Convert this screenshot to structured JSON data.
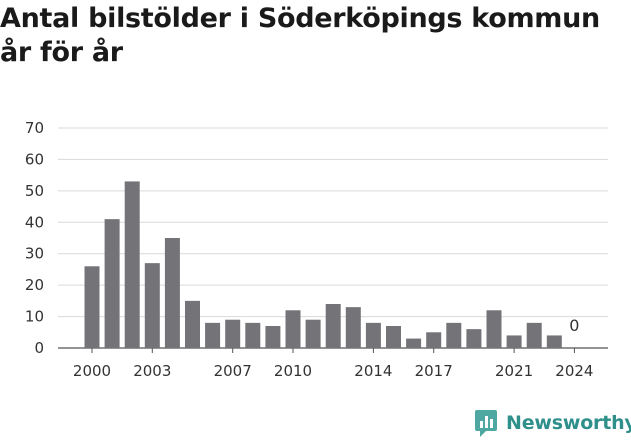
{
  "chart_data": {
    "type": "bar",
    "title_lines": [
      "Antal bilstölder i Söderköpings kommun",
      "år för år"
    ],
    "categories": [
      "2000",
      "2001",
      "2002",
      "2003",
      "2004",
      "2005",
      "2006",
      "2007",
      "2008",
      "2009",
      "2010",
      "2011",
      "2012",
      "2013",
      "2014",
      "2015",
      "2016",
      "2017",
      "2018",
      "2019",
      "2020",
      "2021",
      "2022",
      "2023",
      "2024"
    ],
    "values": [
      26,
      41,
      53,
      27,
      35,
      15,
      8,
      9,
      8,
      7,
      12,
      9,
      14,
      13,
      8,
      7,
      3,
      5,
      8,
      6,
      12,
      4,
      8,
      4,
      0
    ],
    "xticks": [
      "2000",
      "2003",
      "2007",
      "2010",
      "2014",
      "2017",
      "2021",
      "2024"
    ],
    "yticks": [
      0,
      10,
      20,
      30,
      40,
      50,
      60,
      70
    ],
    "ylim": [
      0,
      70
    ],
    "data_labels": [
      {
        "category": "2024",
        "text": "0"
      }
    ],
    "bar_color": "#747378",
    "grid": true
  },
  "brand": {
    "name": "Newsworthy",
    "color": "#2f8f8a"
  }
}
